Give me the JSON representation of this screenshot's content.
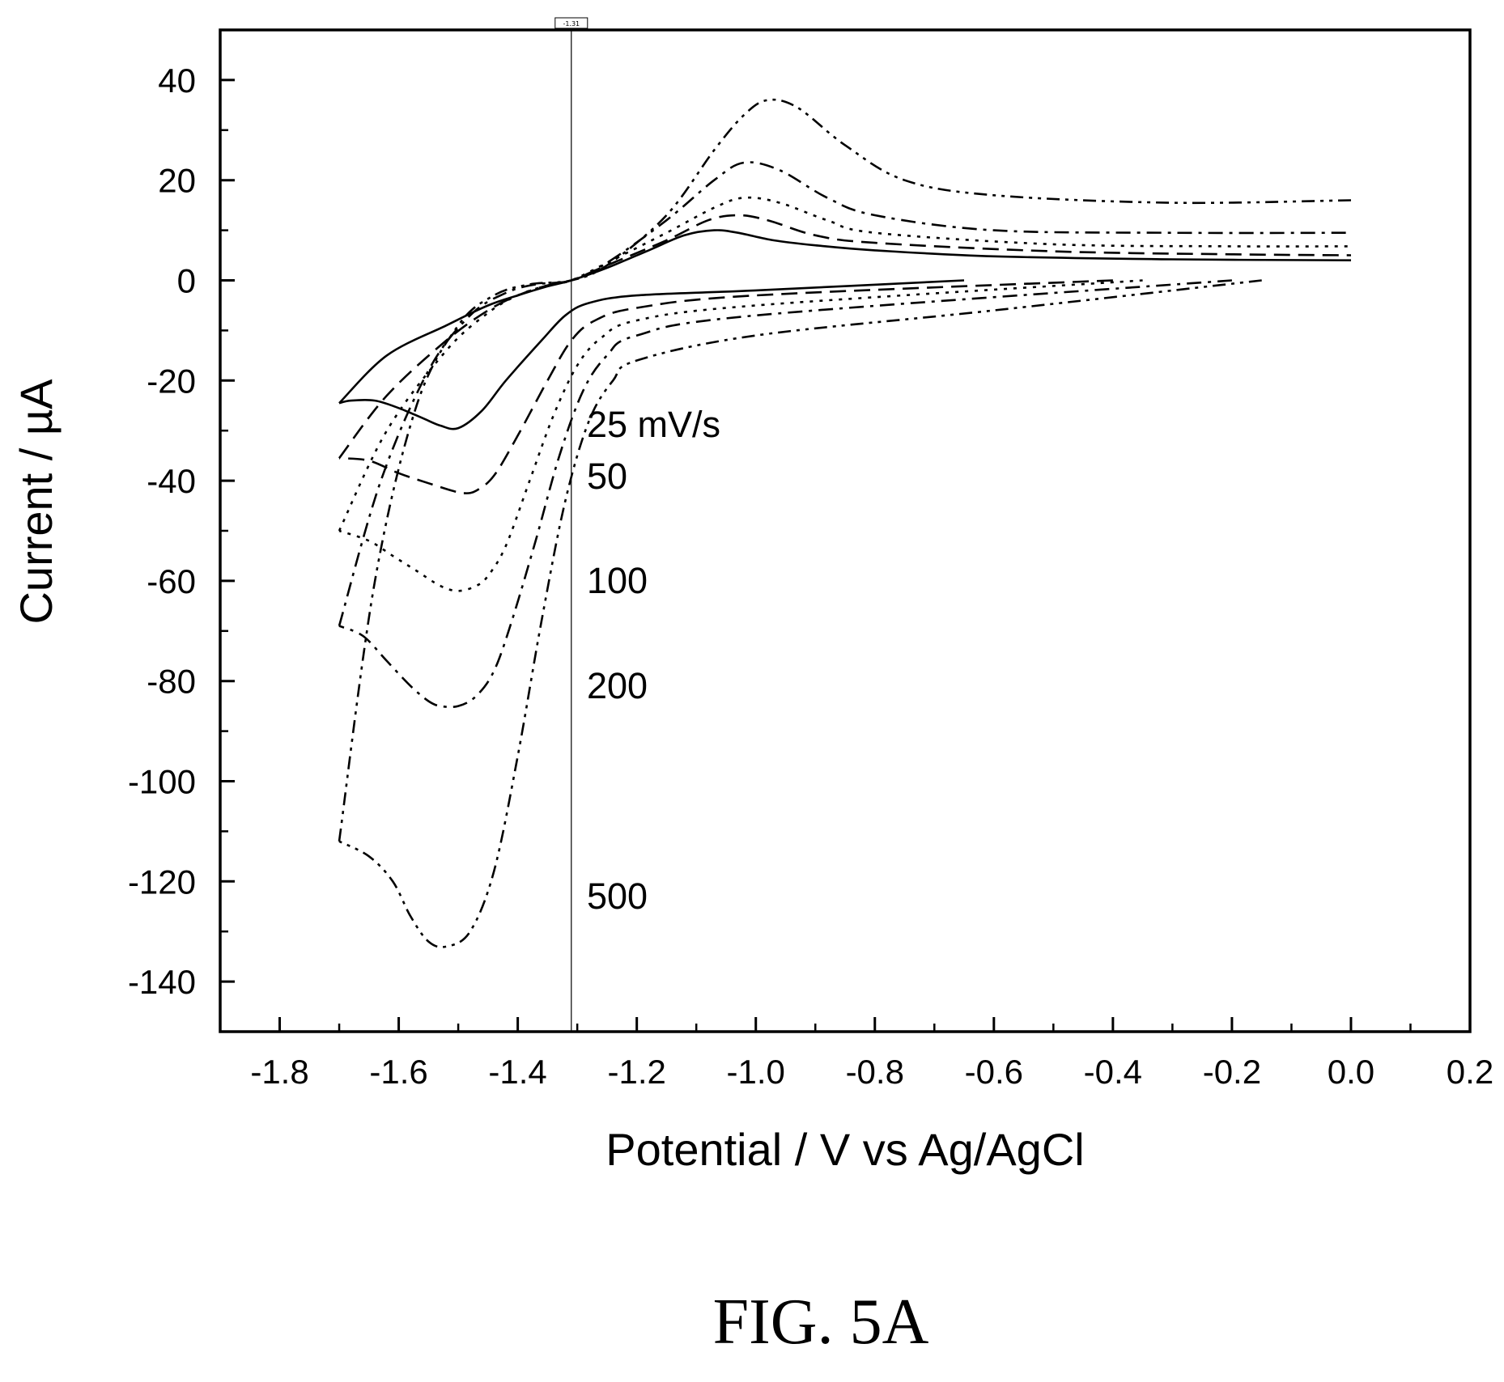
{
  "chart_data": {
    "type": "line",
    "xlabel": "Potential / V vs Ag/AgCl",
    "ylabel": "Current / µA",
    "xlim": [
      -1.9,
      0.2
    ],
    "ylim": [
      -150,
      50
    ],
    "x_ticks": [
      "-1.8",
      "-1.6",
      "-1.4",
      "-1.2",
      "-1.0",
      "-0.8",
      "-0.6",
      "-0.4",
      "-0.2",
      "0.0",
      "0.2"
    ],
    "y_ticks": [
      "40",
      "20",
      "0",
      "-20",
      "-40",
      "-60",
      "-80",
      "-100",
      "-120",
      "-140"
    ],
    "grid": false,
    "vertical_marker": {
      "x": -1.31,
      "label": "-1.31"
    },
    "annotations": [
      "25 mV/s",
      "50",
      "100",
      "200",
      "500"
    ],
    "series": [
      {
        "dash": "solid",
        "forward_x": [
          -0.65,
          -1.0,
          -1.2,
          -1.28,
          -1.32,
          -1.36,
          -1.42,
          -1.46,
          -1.5,
          -1.53,
          -1.56,
          -1.6,
          -1.64,
          -1.68,
          -1.7
        ],
        "forward_y": [
          0,
          -2,
          -3,
          -4.5,
          -7,
          -12,
          -20,
          -26,
          -29.5,
          -29,
          -27.5,
          -25.5,
          -24,
          -24,
          -24.5
        ],
        "reverse_x": [
          -1.7,
          -1.62,
          -1.52,
          -1.45,
          -1.4,
          -1.35,
          -1.31,
          -1.25,
          -1.18,
          -1.12,
          -1.07,
          -1.03,
          -0.97,
          -0.9,
          -0.8,
          -0.6,
          -0.3,
          0.0
        ],
        "reverse_y": [
          -24.5,
          -15,
          -9,
          -5,
          -3,
          -1.2,
          0,
          2.5,
          6,
          9,
          10,
          9.5,
          8,
          7,
          6,
          4.8,
          4.2,
          4
        ]
      },
      {
        "dash": "dashed",
        "forward_x": [
          -0.4,
          -1.0,
          -1.2,
          -1.27,
          -1.31,
          -1.35,
          -1.4,
          -1.44,
          -1.47,
          -1.49,
          -1.51,
          -1.55,
          -1.6,
          -1.65,
          -1.7
        ],
        "forward_y": [
          0,
          -3,
          -5.5,
          -8,
          -12,
          -20,
          -31,
          -39,
          -42,
          -42.5,
          -42,
          -40.5,
          -38.5,
          -36,
          -35.5
        ],
        "reverse_x": [
          -1.7,
          -1.62,
          -1.52,
          -1.45,
          -1.4,
          -1.35,
          -1.31,
          -1.25,
          -1.15,
          -1.08,
          -1.03,
          -0.98,
          -0.9,
          -0.8,
          -0.5,
          -0.2,
          0.0
        ],
        "reverse_y": [
          -35.5,
          -23,
          -12,
          -6,
          -3,
          -1,
          0,
          3,
          8,
          12,
          13,
          12,
          9,
          7.5,
          5.8,
          5.2,
          5
        ]
      },
      {
        "dash": "dotted",
        "forward_x": [
          -0.35,
          -1.0,
          -1.2,
          -1.26,
          -1.3,
          -1.34,
          -1.38,
          -1.42,
          -1.45,
          -1.47,
          -1.5,
          -1.53,
          -1.57,
          -1.61,
          -1.65,
          -1.7
        ],
        "forward_y": [
          0,
          -5,
          -8,
          -11.5,
          -17,
          -27,
          -40,
          -53,
          -59,
          -61,
          -62,
          -61,
          -58,
          -55,
          -52,
          -50
        ],
        "reverse_x": [
          -1.7,
          -1.62,
          -1.52,
          -1.45,
          -1.4,
          -1.35,
          -1.31,
          -1.25,
          -1.15,
          -1.07,
          -1.02,
          -0.96,
          -0.88,
          -0.8,
          -0.5,
          -0.2,
          0.0
        ],
        "reverse_y": [
          -50,
          -30,
          -14,
          -6.5,
          -3,
          -1,
          0,
          3.5,
          9.5,
          14.5,
          16.5,
          15.5,
          12,
          9.5,
          7.2,
          6.8,
          6.8
        ]
      },
      {
        "dash": "dash-dot",
        "forward_x": [
          -0.2,
          -1.0,
          -1.2,
          -1.25,
          -1.29,
          -1.33,
          -1.37,
          -1.41,
          -1.44,
          -1.47,
          -1.5,
          -1.53,
          -1.55,
          -1.58,
          -1.62,
          -1.66,
          -1.7
        ],
        "forward_y": [
          0,
          -7,
          -11,
          -15,
          -22,
          -35,
          -52,
          -68,
          -78,
          -83,
          -85,
          -85,
          -84,
          -81,
          -76,
          -71,
          -69
        ],
        "reverse_x": [
          -1.7,
          -1.63,
          -1.55,
          -1.48,
          -1.42,
          -1.37,
          -1.31,
          -1.25,
          -1.15,
          -1.07,
          -1.02,
          -0.96,
          -0.88,
          -0.8,
          -0.6,
          -0.3,
          0.0
        ],
        "reverse_y": [
          -69,
          -40,
          -18,
          -7,
          -2.5,
          -0.8,
          0,
          3.5,
          12,
          20,
          23.5,
          22,
          16.5,
          13,
          10,
          9.5,
          9.5
        ]
      },
      {
        "dash": "dash-dot-dot",
        "forward_x": [
          -0.15,
          -0.6,
          -1.0,
          -1.2,
          -1.24,
          -1.28,
          -1.32,
          -1.36,
          -1.4,
          -1.44,
          -1.48,
          -1.52,
          -1.55,
          -1.58,
          -1.61,
          -1.65,
          -1.7
        ],
        "forward_y": [
          0,
          -6,
          -11,
          -16,
          -20,
          -28,
          -44,
          -68,
          -95,
          -118,
          -130,
          -133,
          -132,
          -127,
          -120,
          -115,
          -112
        ],
        "reverse_x": [
          -1.7,
          -1.64,
          -1.57,
          -1.5,
          -1.44,
          -1.38,
          -1.31,
          -1.25,
          -1.15,
          -1.07,
          -1.02,
          -0.98,
          -0.93,
          -0.85,
          -0.75,
          -0.6,
          -0.3,
          0.0
        ],
        "reverse_y": [
          -112,
          -60,
          -25,
          -9,
          -3,
          -0.8,
          0,
          3,
          13,
          26,
          33,
          36,
          34.5,
          27,
          20,
          17,
          15.5,
          16
        ]
      }
    ]
  },
  "figure": {
    "caption": "FIG. 5A"
  }
}
